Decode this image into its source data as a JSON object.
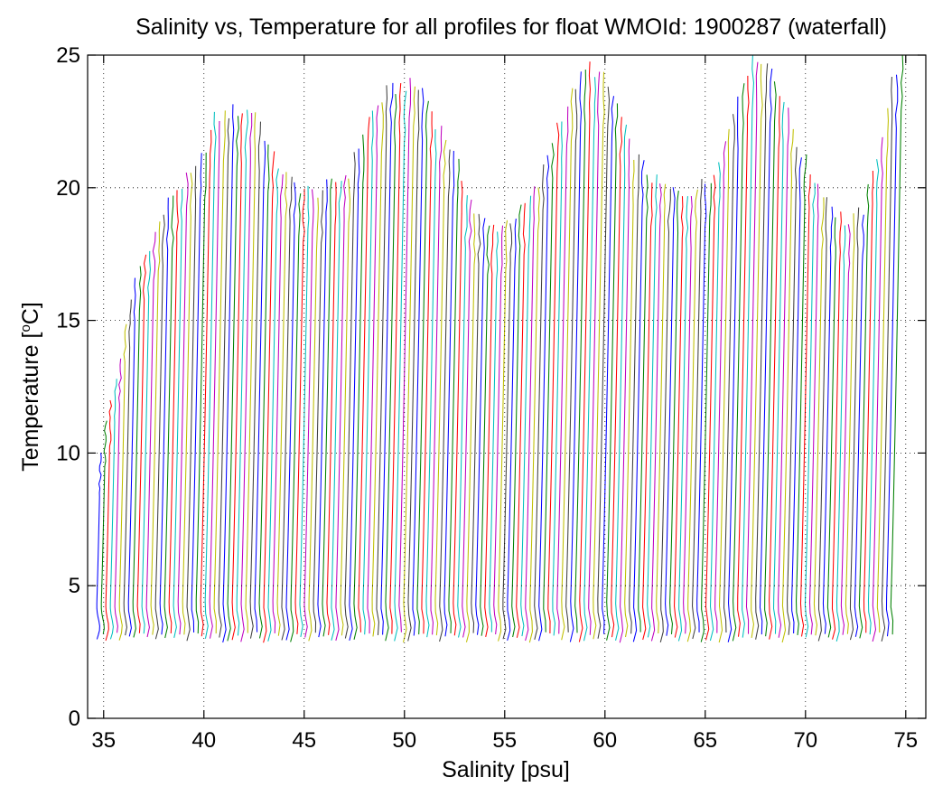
{
  "chart_data": {
    "type": "line",
    "title": "Salinity vs, Temperature for all profiles for float WMOId: 1900287 (waterfall)",
    "xlabel": "Salinity [psu]",
    "ylabel_main": "Temperature [",
    "ylabel_sup": "o",
    "ylabel_tail": "C]",
    "xlim": [
      34.2,
      76.0
    ],
    "ylim": [
      0,
      25
    ],
    "xticks": [
      35,
      40,
      45,
      50,
      55,
      60,
      65,
      70,
      75
    ],
    "yticks": [
      0,
      5,
      10,
      15,
      20,
      25
    ],
    "grid": true,
    "waterfall": {
      "num_profiles": 177,
      "first_base_salinity": 34.65,
      "offset_per_profile": 0.225,
      "top_temperature_by_profile": [
        [
          0,
          10.2
        ],
        [
          4,
          13.7
        ],
        [
          7,
          16.6
        ],
        [
          10,
          17.9
        ],
        [
          15,
          19.8
        ],
        [
          20,
          20.6
        ],
        [
          24,
          22.6
        ],
        [
          28,
          22.9
        ],
        [
          33,
          22.9
        ],
        [
          37,
          21.1
        ],
        [
          41,
          20.2
        ],
        [
          46,
          19.8
        ],
        [
          50,
          20.1
        ],
        [
          54,
          20.6
        ],
        [
          58,
          22.6
        ],
        [
          62,
          23.6
        ],
        [
          66,
          23.9
        ],
        [
          70,
          23.7
        ],
        [
          73,
          22.5
        ],
        [
          76,
          21.6
        ],
        [
          79,
          20.4
        ],
        [
          82,
          19.1
        ],
        [
          85,
          18.5
        ],
        [
          88,
          18.6
        ],
        [
          92,
          19.1
        ],
        [
          96,
          20.1
        ],
        [
          100,
          22.4
        ],
        [
          104,
          23.9
        ],
        [
          107,
          24.6
        ],
        [
          110,
          24.1
        ],
        [
          113,
          23.1
        ],
        [
          116,
          21.6
        ],
        [
          119,
          20.8
        ],
        [
          122,
          20.2
        ],
        [
          125,
          19.9
        ],
        [
          128,
          19.8
        ],
        [
          131,
          20.0
        ],
        [
          134,
          20.3
        ],
        [
          138,
          22.2
        ],
        [
          141,
          24.2
        ],
        [
          144,
          25.0
        ],
        [
          147,
          24.5
        ],
        [
          150,
          23.3
        ],
        [
          153,
          21.7
        ],
        [
          156,
          20.6
        ],
        [
          159,
          19.9
        ],
        [
          162,
          19.1
        ],
        [
          165,
          18.6
        ],
        [
          168,
          19.2
        ],
        [
          170,
          20.5
        ],
        [
          172,
          22.1
        ],
        [
          174,
          24.0
        ],
        [
          176,
          25.0
        ]
      ],
      "series_colors": [
        "#0000ff",
        "#008000",
        "#ff0000",
        "#00bfbf",
        "#bf00bf",
        "#bfbf00",
        "#404040"
      ]
    }
  }
}
